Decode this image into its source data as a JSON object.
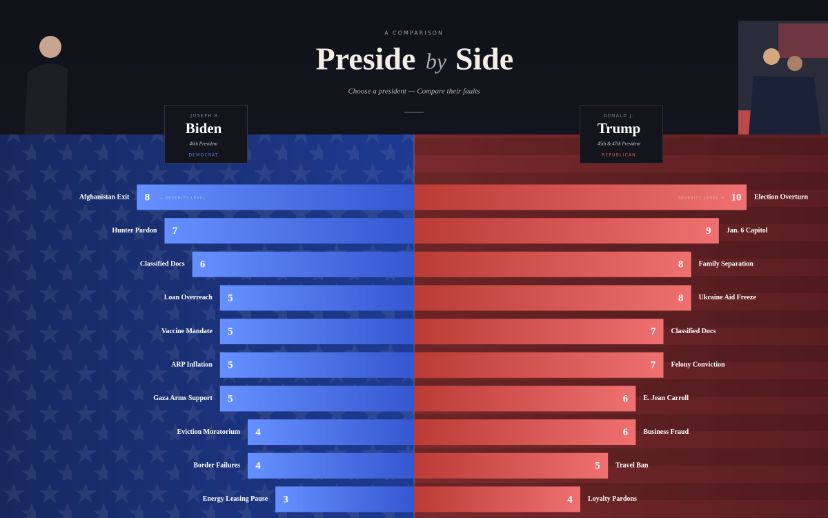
{
  "header": {
    "kicker": "A COMPARISON",
    "title_left": "Preside",
    "title_mid": "by",
    "title_right": "Side",
    "subtitle": "Choose a president — Compare their faults"
  },
  "cards": [
    {
      "first": "JOSEPH R.",
      "last": "Biden",
      "role": "46th President",
      "party": "DEMOCRAT",
      "scale_note": "— SEVERITY LEVEL"
    },
    {
      "first": "DONALD J.",
      "last": "Trump",
      "role": "45th & 47th President",
      "party": "REPUBLICAN",
      "scale_note": "SEVERITY LEVEL →"
    }
  ],
  "chart_data": [
    {
      "type": "bar",
      "direction": "left",
      "gradient": [
        "#6690ff",
        "#3557d0"
      ],
      "xlim": [
        -2,
        10
      ],
      "categories": [
        "Afghanistan Exit",
        "Hunter Pardon",
        "Classified Docs",
        "Loan Overreach",
        "Vaccine Mandate",
        "ARP Inflation",
        "Gaza Arms Support",
        "Eviction Moratorium",
        "Border Failures",
        "Energy Leasing Pause"
      ],
      "values": [
        8,
        7,
        6,
        5,
        5,
        5,
        5,
        4,
        4,
        3
      ]
    },
    {
      "type": "bar",
      "direction": "right",
      "gradient": [
        "#ee7070",
        "#bb3b36"
      ],
      "xlim": [
        -2,
        10
      ],
      "categories": [
        "Election Overturn",
        "Jan. 6 Capitol",
        "Family Separation",
        "Ukraine Aid Freeze",
        "Classified Docs",
        "Felony Conviction",
        "E. Jean Carroll",
        "Business Fraud",
        "Travel Ban",
        "Loyalty Pardons"
      ],
      "values": [
        10,
        9,
        8,
        8,
        7,
        7,
        6,
        6,
        5,
        4
      ]
    }
  ]
}
